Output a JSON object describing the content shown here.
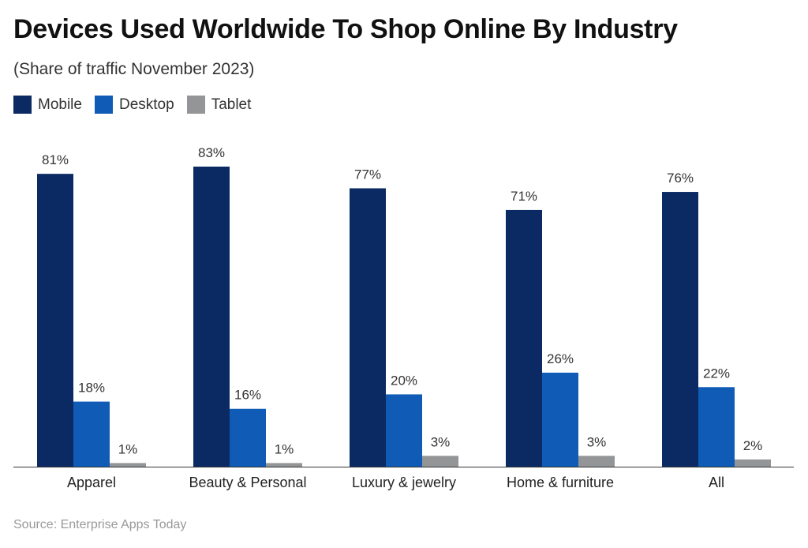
{
  "chart_data": {
    "type": "bar",
    "title": "Devices Used Worldwide To Shop Online By Industry",
    "subtitle": "(Share of traffic November 2023)",
    "categories": [
      "Apparel",
      "Beauty & Personal",
      "Luxury & jewelry",
      "Home & furniture",
      "All"
    ],
    "series": [
      {
        "name": "Mobile",
        "color": "#0b2a63",
        "values": [
          81,
          83,
          77,
          71,
          76
        ]
      },
      {
        "name": "Desktop",
        "color": "#0f5bb5",
        "values": [
          18,
          16,
          20,
          26,
          22
        ]
      },
      {
        "name": "Tablet",
        "color": "#939597",
        "values": [
          1,
          1,
          3,
          3,
          2
        ]
      }
    ],
    "value_suffix": "%",
    "ylim": [
      0,
      83
    ],
    "grid": false,
    "legend_position": "top-left",
    "source": "Source: Enterprise Apps Today"
  }
}
